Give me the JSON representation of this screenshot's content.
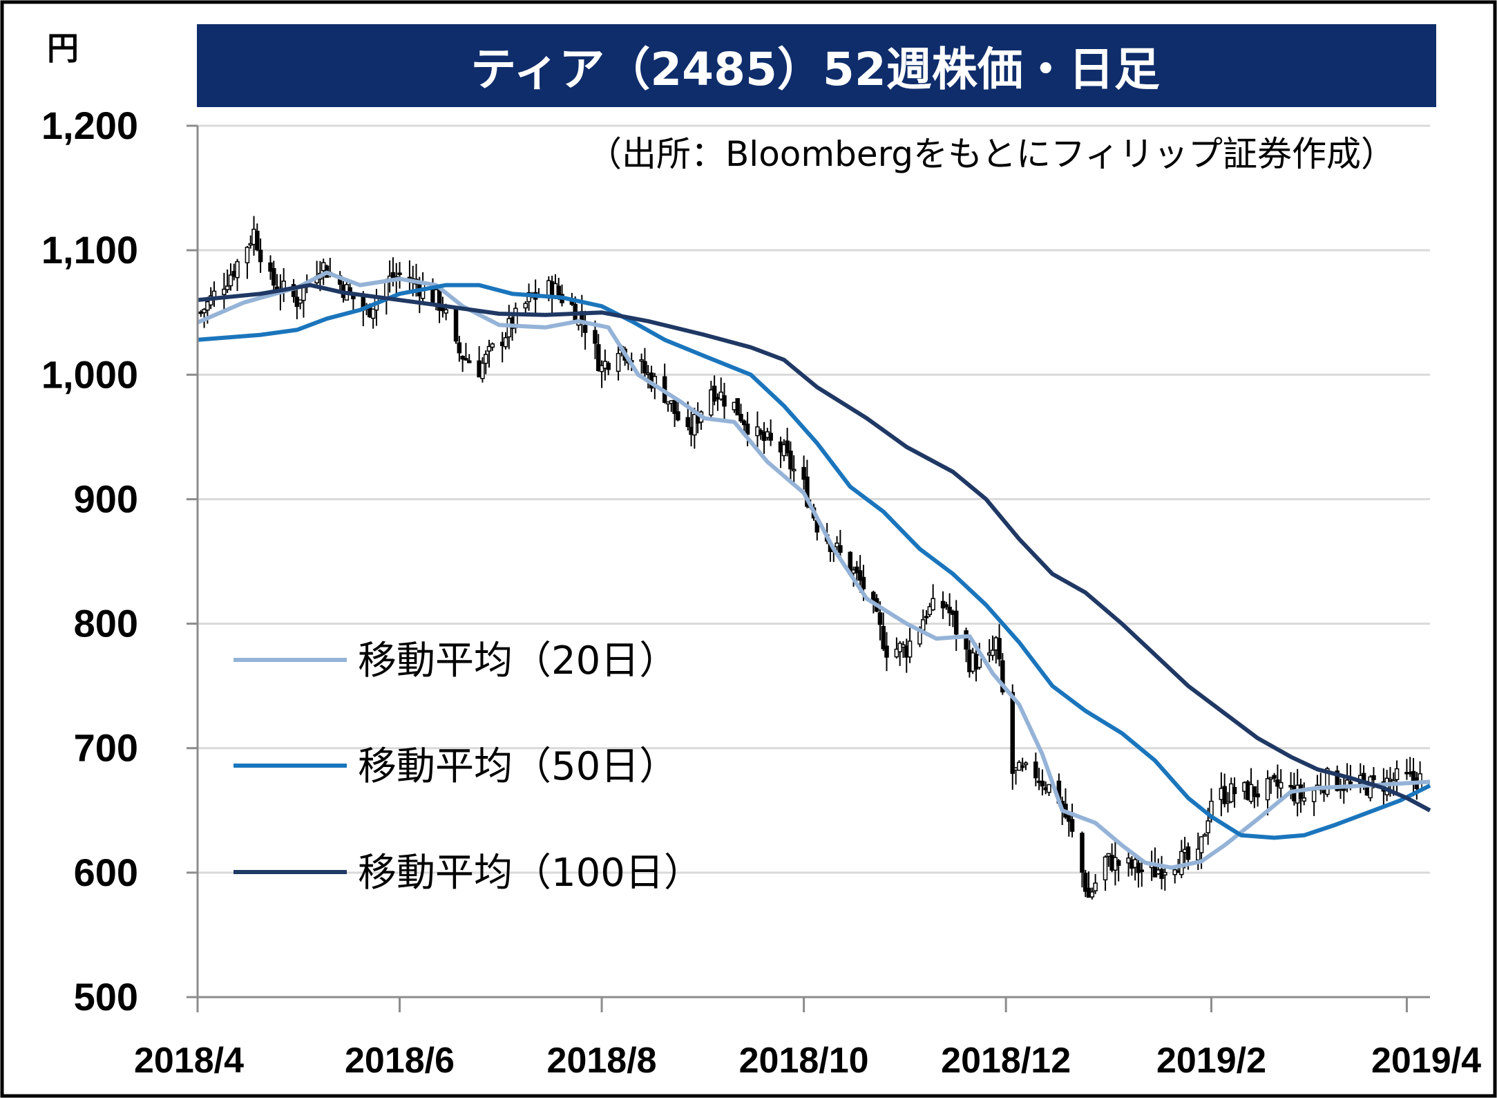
{
  "chart_data": {
    "type": "line",
    "title": "ティア（2485）52週株価・日足",
    "source": "（出所：Bloombergをもとにフィリップ証券作成）",
    "y_unit": "円",
    "ylim": [
      500,
      1200
    ],
    "y_ticks": [
      500,
      600,
      700,
      800,
      900,
      1000,
      1100,
      1200
    ],
    "y_tick_labels": [
      "500",
      "600",
      "700",
      "800",
      "900",
      "1,000",
      "1,100",
      "1,200"
    ],
    "x_tick_labels": [
      "2018/4",
      "2018/6",
      "2018/8",
      "2018/10",
      "2018/12",
      "2019/2",
      "2019/4"
    ],
    "x_tick_dates": [
      "2018-04-01",
      "2018-06-01",
      "2018-08-01",
      "2018-10-01",
      "2018-12-01",
      "2019-02-01",
      "2019-04-01"
    ],
    "xlim": [
      "2018-04-01",
      "2019-04-08"
    ],
    "grid": true,
    "legend_position": "left-middle",
    "price": {
      "style": "daily candlestick (black)",
      "keypoints": [
        [
          "2018-04-02",
          1050
        ],
        [
          "2018-04-12",
          1085
        ],
        [
          "2018-04-18",
          1115
        ],
        [
          "2018-04-23",
          1075
        ],
        [
          "2018-05-01",
          1060
        ],
        [
          "2018-05-08",
          1090
        ],
        [
          "2018-05-15",
          1070
        ],
        [
          "2018-05-22",
          1050
        ],
        [
          "2018-05-28",
          1075
        ],
        [
          "2018-06-01",
          1080
        ],
        [
          "2018-06-08",
          1070
        ],
        [
          "2018-06-14",
          1055
        ],
        [
          "2018-06-18",
          1020
        ],
        [
          "2018-06-25",
          1005
        ],
        [
          "2018-07-02",
          1030
        ],
        [
          "2018-07-10",
          1060
        ],
        [
          "2018-07-17",
          1070
        ],
        [
          "2018-07-23",
          1055
        ],
        [
          "2018-07-27",
          1040
        ],
        [
          "2018-08-01",
          1005
        ],
        [
          "2018-08-06",
          1025
        ],
        [
          "2018-08-13",
          1005
        ],
        [
          "2018-08-20",
          985
        ],
        [
          "2018-08-27",
          950
        ],
        [
          "2018-09-03",
          990
        ],
        [
          "2018-09-10",
          975
        ],
        [
          "2018-09-17",
          950
        ],
        [
          "2018-09-24",
          940
        ],
        [
          "2018-10-01",
          910
        ],
        [
          "2018-10-05",
          880
        ],
        [
          "2018-10-12",
          855
        ],
        [
          "2018-10-19",
          830
        ],
        [
          "2018-10-26",
          780
        ],
        [
          "2018-11-01",
          780
        ],
        [
          "2018-11-07",
          810
        ],
        [
          "2018-11-13",
          815
        ],
        [
          "2018-11-20",
          770
        ],
        [
          "2018-11-26",
          770
        ],
        [
          "2018-11-28",
          785
        ],
        [
          "2018-12-03",
          680
        ],
        [
          "2018-12-10",
          680
        ],
        [
          "2018-12-17",
          660
        ],
        [
          "2018-12-21",
          630
        ],
        [
          "2018-12-26",
          580
        ],
        [
          "2018-12-31",
          610
        ],
        [
          "2019-01-07",
          605
        ],
        [
          "2019-01-14",
          600
        ],
        [
          "2019-01-21",
          610
        ],
        [
          "2019-01-28",
          610
        ],
        [
          "2019-02-01",
          660
        ],
        [
          "2019-02-08",
          665
        ],
        [
          "2019-02-15",
          665
        ],
        [
          "2019-02-22",
          670
        ],
        [
          "2019-03-01",
          660
        ],
        [
          "2019-03-08",
          675
        ],
        [
          "2019-03-15",
          670
        ],
        [
          "2019-03-22",
          670
        ],
        [
          "2019-03-29",
          675
        ],
        [
          "2019-04-05",
          675
        ]
      ]
    },
    "series": [
      {
        "name": "移動平均（20日）",
        "color": "#95b3d7",
        "points": [
          [
            "2018-04-01",
            1042
          ],
          [
            "2018-04-15",
            1058
          ],
          [
            "2018-05-01",
            1070
          ],
          [
            "2018-05-10",
            1082
          ],
          [
            "2018-05-20",
            1072
          ],
          [
            "2018-06-01",
            1077
          ],
          [
            "2018-06-12",
            1072
          ],
          [
            "2018-06-20",
            1055
          ],
          [
            "2018-07-01",
            1040
          ],
          [
            "2018-07-15",
            1038
          ],
          [
            "2018-07-25",
            1043
          ],
          [
            "2018-08-03",
            1038
          ],
          [
            "2018-08-12",
            1000
          ],
          [
            "2018-08-25",
            978
          ],
          [
            "2018-09-01",
            965
          ],
          [
            "2018-09-10",
            962
          ],
          [
            "2018-09-20",
            930
          ],
          [
            "2018-10-01",
            905
          ],
          [
            "2018-10-10",
            860
          ],
          [
            "2018-10-20",
            820
          ],
          [
            "2018-11-01",
            800
          ],
          [
            "2018-11-10",
            788
          ],
          [
            "2018-11-20",
            790
          ],
          [
            "2018-11-27",
            760
          ],
          [
            "2018-12-05",
            735
          ],
          [
            "2018-12-12",
            695
          ],
          [
            "2018-12-18",
            650
          ],
          [
            "2018-12-28",
            640
          ],
          [
            "2019-01-05",
            622
          ],
          [
            "2019-01-12",
            608
          ],
          [
            "2019-01-20",
            604
          ],
          [
            "2019-01-29",
            609
          ],
          [
            "2019-02-05",
            622
          ],
          [
            "2019-02-15",
            643
          ],
          [
            "2019-02-25",
            665
          ],
          [
            "2019-03-05",
            668
          ],
          [
            "2019-03-20",
            670
          ],
          [
            "2019-04-08",
            673
          ]
        ]
      },
      {
        "name": "移動平均（50日）",
        "color": "#1a75bc",
        "points": [
          [
            "2018-04-01",
            1028
          ],
          [
            "2018-04-20",
            1032
          ],
          [
            "2018-05-01",
            1036
          ],
          [
            "2018-05-10",
            1045
          ],
          [
            "2018-05-20",
            1052
          ],
          [
            "2018-06-01",
            1065
          ],
          [
            "2018-06-15",
            1072
          ],
          [
            "2018-06-25",
            1072
          ],
          [
            "2018-07-05",
            1065
          ],
          [
            "2018-07-20",
            1062
          ],
          [
            "2018-08-01",
            1055
          ],
          [
            "2018-08-10",
            1043
          ],
          [
            "2018-08-20",
            1028
          ],
          [
            "2018-09-01",
            1015
          ],
          [
            "2018-09-15",
            1000
          ],
          [
            "2018-09-25",
            975
          ],
          [
            "2018-10-05",
            945
          ],
          [
            "2018-10-15",
            910
          ],
          [
            "2018-10-25",
            890
          ],
          [
            "2018-11-05",
            860
          ],
          [
            "2018-11-15",
            840
          ],
          [
            "2018-11-25",
            815
          ],
          [
            "2018-12-05",
            785
          ],
          [
            "2018-12-15",
            750
          ],
          [
            "2018-12-25",
            730
          ],
          [
            "2019-01-05",
            712
          ],
          [
            "2019-01-15",
            690
          ],
          [
            "2019-01-25",
            660
          ],
          [
            "2019-02-01",
            645
          ],
          [
            "2019-02-10",
            630
          ],
          [
            "2019-02-20",
            628
          ],
          [
            "2019-03-01",
            630
          ],
          [
            "2019-03-10",
            638
          ],
          [
            "2019-03-20",
            648
          ],
          [
            "2019-03-30",
            658
          ],
          [
            "2019-04-08",
            670
          ]
        ]
      },
      {
        "name": "移動平均（100日）",
        "color": "#1f3864",
        "points": [
          [
            "2018-04-01",
            1060
          ],
          [
            "2018-04-20",
            1065
          ],
          [
            "2018-05-05",
            1072
          ],
          [
            "2018-05-15",
            1066
          ],
          [
            "2018-06-01",
            1060
          ],
          [
            "2018-06-15",
            1055
          ],
          [
            "2018-07-01",
            1049
          ],
          [
            "2018-07-15",
            1048
          ],
          [
            "2018-08-01",
            1050
          ],
          [
            "2018-08-15",
            1043
          ],
          [
            "2018-09-01",
            1032
          ],
          [
            "2018-09-15",
            1022
          ],
          [
            "2018-09-25",
            1012
          ],
          [
            "2018-10-05",
            990
          ],
          [
            "2018-10-20",
            965
          ],
          [
            "2018-11-01",
            942
          ],
          [
            "2018-11-15",
            922
          ],
          [
            "2018-11-25",
            900
          ],
          [
            "2018-12-05",
            868
          ],
          [
            "2018-12-15",
            840
          ],
          [
            "2018-12-25",
            825
          ],
          [
            "2019-01-05",
            800
          ],
          [
            "2019-01-15",
            775
          ],
          [
            "2019-01-25",
            750
          ],
          [
            "2019-02-05",
            728
          ],
          [
            "2019-02-15",
            708
          ],
          [
            "2019-02-25",
            693
          ],
          [
            "2019-03-05",
            683
          ],
          [
            "2019-03-15",
            676
          ],
          [
            "2019-03-25",
            668
          ],
          [
            "2019-04-01",
            660
          ],
          [
            "2019-04-08",
            650
          ]
        ]
      }
    ]
  }
}
